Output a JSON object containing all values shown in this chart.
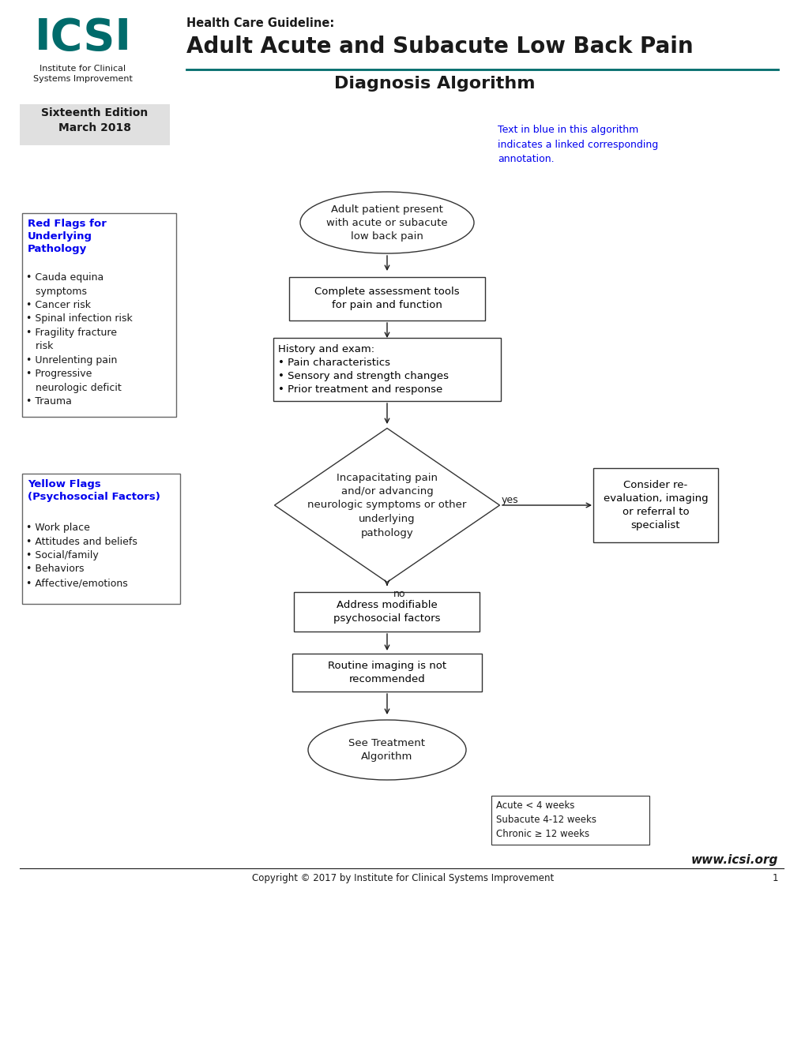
{
  "bg_color": "#ffffff",
  "teal_color": "#006B6B",
  "blue_color": "#0000EE",
  "black_color": "#1a1a1a",
  "gray_bg": "#e8e8e8",
  "header": {
    "icsi_text": "ICSI",
    "icsi_sub": "Institute for Clinical\nSystems Improvement",
    "guideline_label": "Health Care Guideline:",
    "title_main": "Adult Acute and Subacute Low Back Pain",
    "title_sub": "Diagnosis Algorithm",
    "edition_text": "Sixteenth Edition\nMarch 2018",
    "annotation_note": "Text in blue in this algorithm\nindicates a linked corresponding\nannotation."
  },
  "red_flags_box": {
    "title": "Red Flags for\nUnderlying\nPathology",
    "items_text": "• Cauda equina\n   symptoms\n• Cancer risk\n• Spinal infection risk\n• Fragility fracture\n   risk\n• Unrelenting pain\n• Progressive\n   neurologic deficit\n• Trauma"
  },
  "yellow_flags_box": {
    "title": "Yellow Flags\n(Psychosocial Factors)",
    "items_text": "• Work place\n• Attitudes and beliefs\n• Social/family\n• Behaviors\n• Affective/emotions"
  },
  "nodes": {
    "start_text": "Adult patient present\nwith acute or subacute\nlow back pain",
    "assess_text": "Complete assessment tools\nfor pain and function",
    "history_text": "History and exam:\n• Pain characteristics\n• Sensory and strength changes\n• Prior treatment and response",
    "diamond_text": "Incapacitating pain\nand/or advancing\nneurologic symptoms or other\nunderlying\npathology",
    "consider_text": "Consider re-\nevaluation, imaging\nor referral to\nspecialist",
    "address_text": "Address modifiable\npsychosocial factors",
    "imaging_text": "Routine imaging is not\nrecommended",
    "treatment_text": "See Treatment\nAlgorithm"
  },
  "bottom_note": "Acute < 4 weeks\nSubacute 4-12 weeks\nChronic ≥ 12 weeks",
  "footer_text": "Copyright © 2017 by Institute for Clinical Systems Improvement",
  "footer_page": "1",
  "footer_url": "www.icsi.org"
}
